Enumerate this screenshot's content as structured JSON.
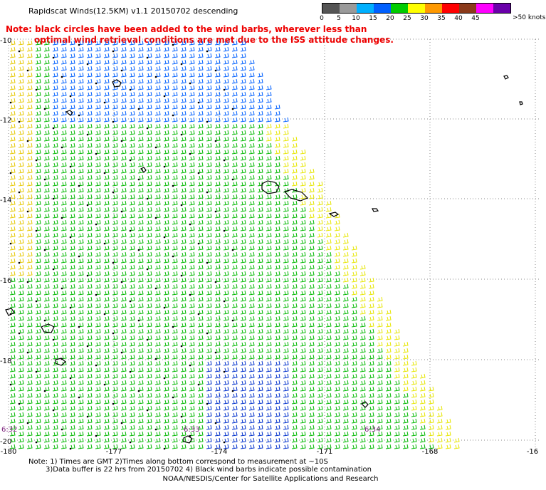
{
  "title": "Rapidscat Winds(12.5KM) v1.1 20150702 descending",
  "note": {
    "line1": "Note: black circles have been added to the wind barbs, wherever less than",
    "line2": "optimal wind retrieval conditions are met due to the ISS attitude changes."
  },
  "color_scale": {
    "labels": [
      "0",
      "5",
      "10",
      "15",
      "20",
      "25",
      "30",
      "35",
      "40",
      "45",
      ">50 knots"
    ],
    "colors": [
      "#555555",
      "#9a9a9a",
      "#00b0ff",
      "#0060ff",
      "#00cc00",
      "#ffff00",
      "#ff9900",
      "#ff0000",
      "#8b3a1a",
      "#ff00ff",
      "#6a00aa"
    ]
  },
  "lat_labels": [
    "-10",
    "-12",
    "-14",
    "-16",
    "-18",
    "-20"
  ],
  "lon_labels": [
    "-180",
    "-177",
    "-174",
    "-171",
    "-168",
    "-16"
  ],
  "time_labels": [
    "6:32",
    "6:33",
    "6:34"
  ],
  "footer": {
    "line1": "Note: 1) Times are GMT 2)Times along bottom correspond to measurement at ~10S",
    "line2": "3)Data buffer is 22 hrs from 20150702 4) Black wind barbs indicate possible contamination",
    "credit": "NOAA/NESDIS/Center for Satellite Applications and Research"
  }
}
